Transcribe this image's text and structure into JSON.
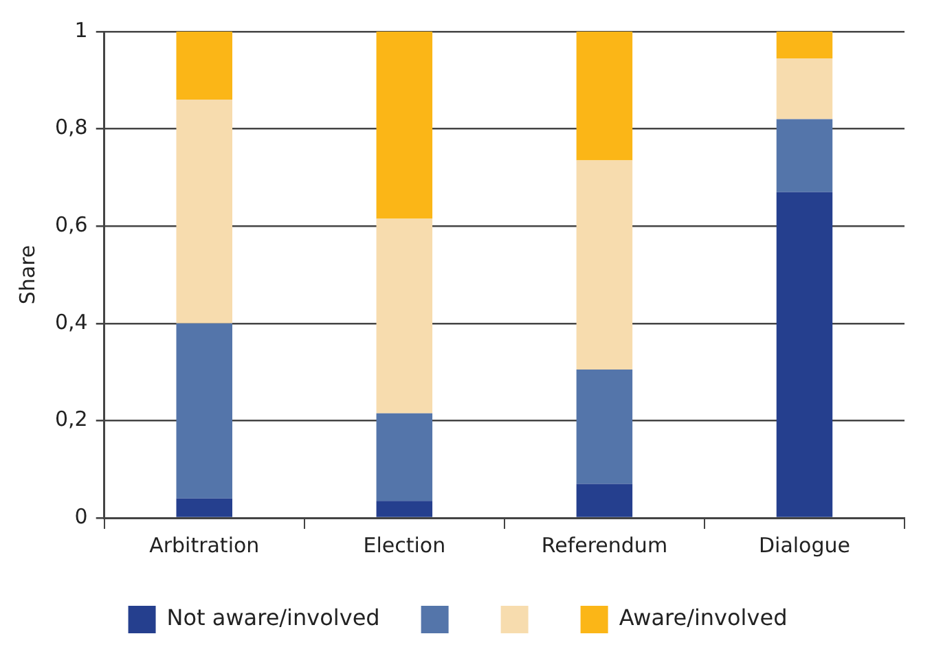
{
  "chart_data": {
    "type": "bar",
    "stacked": true,
    "ylabel": "Share",
    "categories": [
      "Arbitration",
      "Election",
      "Referendum",
      "Dialogue"
    ],
    "series": [
      {
        "name": "Not aware/involved",
        "color": "#253f8e",
        "values": [
          0.04,
          0.035,
          0.07,
          0.67
        ]
      },
      {
        "color": "#5475aa",
        "values": [
          0.36,
          0.18,
          0.235,
          0.15
        ]
      },
      {
        "color": "#f7dcae",
        "values": [
          0.46,
          0.4,
          0.43,
          0.125
        ]
      },
      {
        "name": "Aware/involved",
        "color": "#fbb617",
        "values": [
          0.14,
          0.385,
          0.265,
          0.055
        ]
      }
    ],
    "ylim": [
      0,
      1
    ],
    "yticks": [
      0,
      {
        "value": 0.2,
        "label": "0,2"
      },
      {
        "value": 0.4,
        "label": "0,4"
      },
      {
        "value": 0.6,
        "label": "0,6"
      },
      {
        "value": 0.8,
        "label": "0,8"
      },
      1
    ],
    "grid": "y",
    "legend": "bottom"
  }
}
